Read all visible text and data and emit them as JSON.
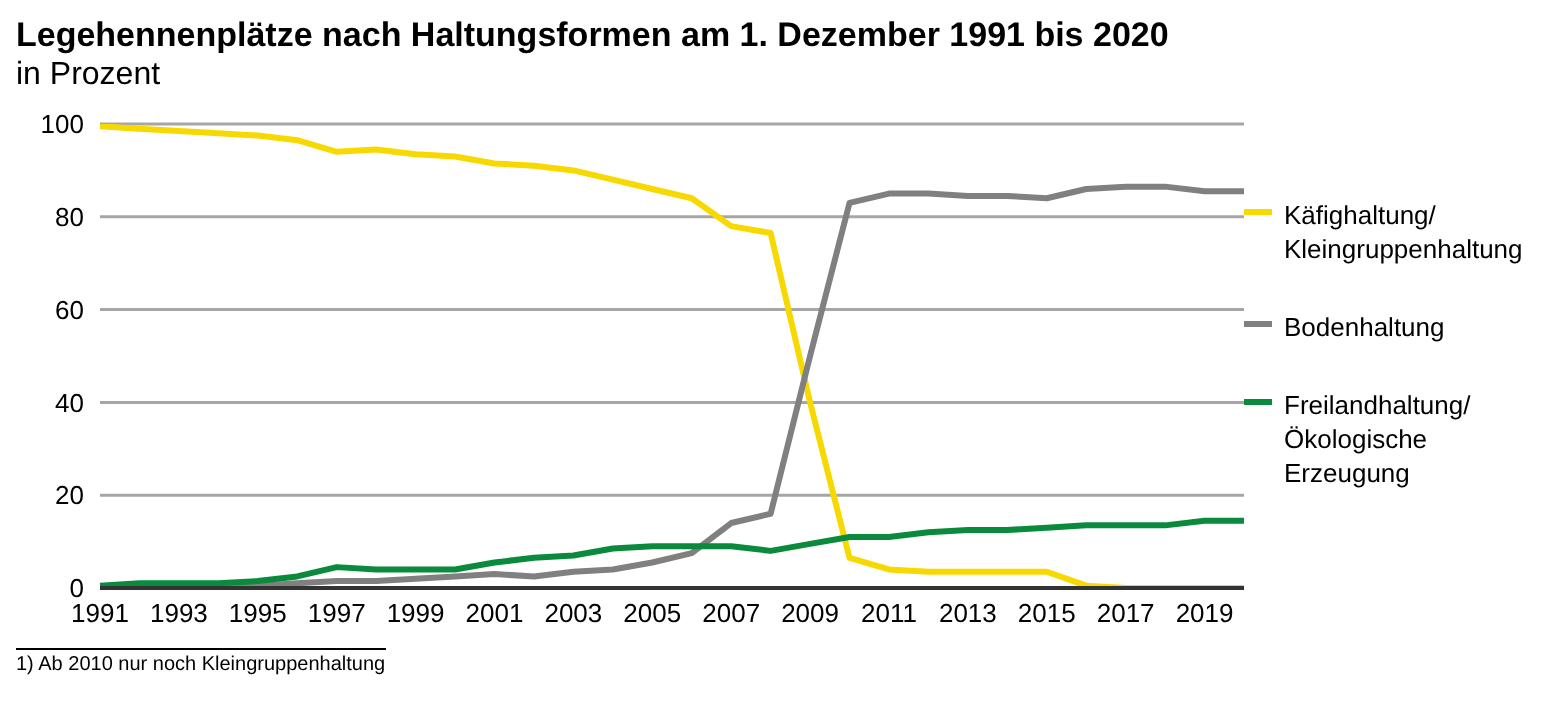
{
  "chart_data": {
    "type": "line",
    "title": "Legehennenplätze nach Haltungsformen am 1. Dezember 1991 bis 2020",
    "subtitle": "in Prozent",
    "categories": [
      "1991",
      null,
      "1993",
      null,
      "1995",
      null,
      "1997",
      null,
      "1999",
      null,
      "2001",
      null,
      "2003",
      null,
      "2005",
      null,
      "2007",
      null,
      "2009",
      null,
      "2011",
      null,
      "2013",
      null,
      "2015",
      null,
      "2017",
      null,
      "2019",
      null
    ],
    "series": [
      {
        "name": "Käfighaltung/ Kleingruppenhaltung",
        "color": "#f7d900",
        "values": [
          99.5,
          99,
          98.5,
          98,
          97.5,
          96.5,
          94,
          94.5,
          93.5,
          93,
          91.5,
          91,
          90,
          88,
          86,
          84,
          78,
          76.5,
          40,
          6.5,
          4,
          3.5,
          3.5,
          3.5,
          3.5,
          0.5,
          0,
          0,
          0,
          0
        ]
      },
      {
        "name": "Bodenhaltung",
        "color": "#808080",
        "values": [
          0,
          0,
          0,
          0,
          0.5,
          1,
          1.5,
          1.5,
          2,
          2.5,
          3,
          2.5,
          3.5,
          4,
          5.5,
          7.5,
          14,
          16,
          50,
          83,
          85,
          85,
          84.5,
          84.5,
          84,
          86,
          86.5,
          86.5,
          85.5,
          85.5
        ]
      },
      {
        "name": "Freilandhaltung/ Ökologische Erzeugung",
        "color": "#0a8a3c",
        "values": [
          0.5,
          1,
          1,
          1,
          1.5,
          2.5,
          4.5,
          4,
          4,
          4,
          5.5,
          6.5,
          7,
          8.5,
          9,
          9,
          9,
          8,
          9.5,
          11,
          11,
          12,
          12.5,
          12.5,
          13,
          13.5,
          13.5,
          13.5,
          14.5,
          14.5
        ]
      }
    ],
    "ylim": [
      0,
      100
    ],
    "yticks": [
      0,
      20,
      40,
      60,
      80,
      100
    ],
    "grid": "y",
    "legend": "right",
    "marker": "none",
    "line_style": "solid",
    "annotations": [
      "1) Ab 2010 nur noch Kleingruppenhaltung"
    ]
  }
}
